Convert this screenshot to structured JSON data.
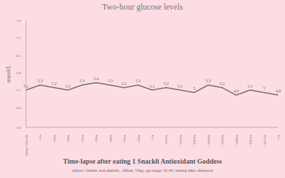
{
  "chart_data": {
    "type": "line",
    "title": "Two-hour glucose levels",
    "subtitle": "Time-lapse after eating 1 Snackli Antioxidant Goddess",
    "note": "subject: female, non-diabetic, 166cm, 55kg, age range: 35-44 | testing time: afternoon",
    "y_label": "mmol/L",
    "categories": [
      "Eating 1 Snackli",
      "+5m",
      "+10m",
      "+20m",
      "+25m",
      "+30m",
      "+40m",
      "+45m",
      "+50m",
      "+1h",
      "+1h7m",
      "+1h15m",
      "+1h25m",
      "+1h30m",
      "+1h35m",
      "+1h40m",
      "+1h45m",
      "+1h55m",
      "+2h"
    ],
    "values": [
      5.1,
      5.3,
      5.2,
      5.1,
      5.3,
      5.4,
      5.3,
      5.2,
      5.3,
      5.1,
      5.2,
      5.1,
      5.0,
      5.3,
      5.2,
      4.9,
      5.1,
      5.0,
      4.9
    ],
    "color": "#6b6b6b",
    "ylim": [
      3.6,
      7.9
    ],
    "yticks": [
      3.6,
      4.4,
      5.1,
      5.8,
      6.5,
      7.2,
      7.9
    ],
    "grid": false,
    "data_labels": true
  }
}
